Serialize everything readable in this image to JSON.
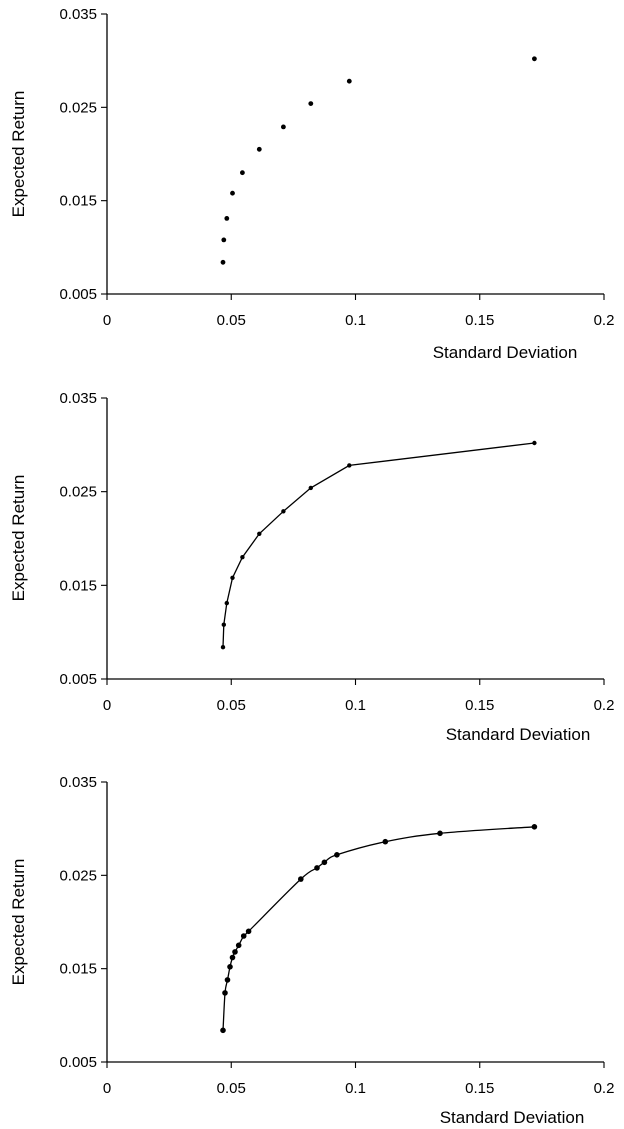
{
  "chart_data": [
    {
      "type": "scatter",
      "title": "",
      "xlabel": "Standard Deviation",
      "ylabel": "Expected Return",
      "xlim": [
        0,
        0.2
      ],
      "ylim": [
        0.005,
        0.035
      ],
      "x_ticks": [
        "0",
        "0.05",
        "0.1",
        "0.15",
        "0.2"
      ],
      "y_ticks": [
        "0.005",
        "0.015",
        "0.025",
        "0.035"
      ],
      "grid": false,
      "series": [
        {
          "x": [
            0.0467,
            0.047,
            0.0482,
            0.0505,
            0.0545,
            0.0613,
            0.071,
            0.082,
            0.0975,
            0.172
          ],
          "y": [
            0.0084,
            0.0108,
            0.0131,
            0.0158,
            0.018,
            0.0205,
            0.0229,
            0.0254,
            0.0278,
            0.0302
          ]
        }
      ]
    },
    {
      "type": "line",
      "title": "",
      "xlabel": "Standard Deviation",
      "ylabel": "Expected Return",
      "xlim": [
        0,
        0.2
      ],
      "ylim": [
        0.005,
        0.035
      ],
      "x_ticks": [
        "0",
        "0.05",
        "0.1",
        "0.15",
        "0.2"
      ],
      "y_ticks": [
        "0.005",
        "0.015",
        "0.025",
        "0.035"
      ],
      "grid": false,
      "series": [
        {
          "x": [
            0.0467,
            0.047,
            0.0482,
            0.0505,
            0.0545,
            0.0613,
            0.071,
            0.082,
            0.0975,
            0.172
          ],
          "y": [
            0.0084,
            0.0108,
            0.0131,
            0.0158,
            0.018,
            0.0205,
            0.0229,
            0.0254,
            0.0278,
            0.0302
          ]
        }
      ]
    },
    {
      "type": "line",
      "title": "",
      "xlabel": "Standard Deviation",
      "ylabel": "Expected Return",
      "xlim": [
        0,
        0.2
      ],
      "ylim": [
        0.005,
        0.035
      ],
      "x_ticks": [
        "0",
        "0.05",
        "0.1",
        "0.15",
        "0.2"
      ],
      "y_ticks": [
        "0.005",
        "0.015",
        "0.025",
        "0.035"
      ],
      "grid": false,
      "series": [
        {
          "x": [
            0.0467,
            0.0475,
            0.0485,
            0.0495,
            0.0505,
            0.0515,
            0.053,
            0.055,
            0.057,
            0.078,
            0.0845,
            0.0875,
            0.0925,
            0.112,
            0.134,
            0.172
          ],
          "y": [
            0.0084,
            0.0124,
            0.0138,
            0.0152,
            0.0162,
            0.0168,
            0.0175,
            0.0185,
            0.019,
            0.0246,
            0.0258,
            0.0264,
            0.0272,
            0.0286,
            0.0295,
            0.0302
          ]
        }
      ]
    }
  ]
}
